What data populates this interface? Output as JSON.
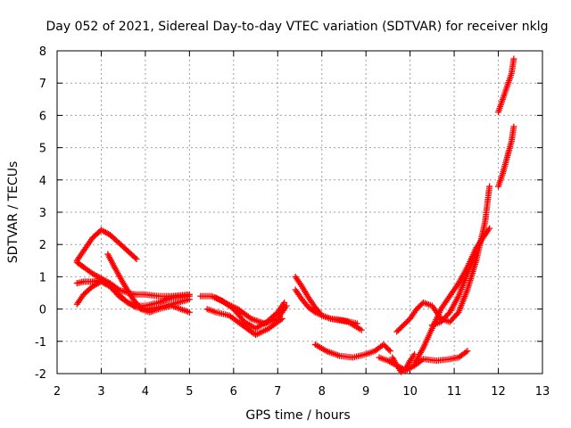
{
  "chart_data": {
    "type": "scatter",
    "title": "Day 052 of 2021, Sidereal Day-to-day VTEC variation (SDTVAR) for receiver nklg",
    "xlabel": "GPS time / hours",
    "ylabel": "SDTVAR / TECUs",
    "xlim": [
      2,
      13
    ],
    "ylim": [
      -2,
      8
    ],
    "xticks": [
      2,
      3,
      4,
      5,
      6,
      7,
      8,
      9,
      10,
      11,
      12,
      13
    ],
    "yticks": [
      -2,
      -1,
      0,
      1,
      2,
      3,
      4,
      5,
      6,
      7,
      8
    ],
    "grid": true,
    "marker": "+",
    "color": "#ff0000",
    "series": [
      {
        "x": [
          2.45,
          2.6,
          2.8,
          3.0,
          3.2,
          3.4,
          3.6,
          3.8
        ],
        "y": [
          1.5,
          1.8,
          2.2,
          2.45,
          2.3,
          2.05,
          1.8,
          1.55
        ]
      },
      {
        "x": [
          2.45,
          2.6,
          2.8,
          3.0,
          3.2,
          3.4,
          3.6,
          3.8,
          4.0,
          4.3,
          4.6,
          5.0
        ],
        "y": [
          1.45,
          1.3,
          1.1,
          0.95,
          0.8,
          0.6,
          0.5,
          0.45,
          0.45,
          0.4,
          0.4,
          0.45
        ]
      },
      {
        "x": [
          2.45,
          2.6,
          2.8,
          3.0,
          3.2,
          3.4,
          3.6,
          3.8,
          4.0,
          4.3,
          4.6,
          5.0
        ],
        "y": [
          0.8,
          0.85,
          0.85,
          0.9,
          0.75,
          0.45,
          0.2,
          0.05,
          0.0,
          0.05,
          0.15,
          0.3
        ]
      },
      {
        "x": [
          2.45,
          2.6,
          2.8,
          3.0,
          3.2,
          3.4,
          3.6,
          3.8,
          4.0,
          4.3,
          4.6,
          5.0
        ],
        "y": [
          0.15,
          0.45,
          0.7,
          0.85,
          0.7,
          0.4,
          0.2,
          0.1,
          0.1,
          0.2,
          0.35,
          0.4
        ]
      },
      {
        "x": [
          3.15,
          3.3,
          3.5,
          3.7,
          3.9,
          4.1,
          4.3,
          4.6,
          5.0
        ],
        "y": [
          1.7,
          1.3,
          0.8,
          0.35,
          0.0,
          -0.1,
          0.0,
          0.1,
          -0.1
        ]
      },
      {
        "x": [
          5.25,
          5.5,
          5.75,
          6.0,
          6.25,
          6.5,
          6.75,
          7.0,
          7.15
        ],
        "y": [
          0.4,
          0.4,
          0.25,
          0.0,
          -0.4,
          -0.6,
          -0.4,
          -0.1,
          0.2
        ]
      },
      {
        "x": [
          5.4,
          5.6,
          5.9,
          6.2,
          6.5,
          6.8,
          7.1
        ],
        "y": [
          0.0,
          -0.1,
          -0.2,
          -0.5,
          -0.8,
          -0.6,
          -0.3
        ]
      },
      {
        "x": [
          5.6,
          5.8,
          6.1,
          6.4,
          6.7,
          7.0,
          7.2
        ],
        "y": [
          0.35,
          0.2,
          0.0,
          -0.3,
          -0.45,
          -0.3,
          0.1
        ]
      },
      {
        "x": [
          7.4,
          7.55,
          7.7,
          7.85,
          8.0,
          8.2,
          8.4,
          8.6,
          8.9
        ],
        "y": [
          1.0,
          0.7,
          0.35,
          0.05,
          -0.2,
          -0.3,
          -0.35,
          -0.4,
          -0.65
        ]
      },
      {
        "x": [
          7.4,
          7.55,
          7.7,
          7.85,
          8.0,
          8.2,
          8.5,
          8.8
        ],
        "y": [
          0.6,
          0.3,
          0.05,
          -0.1,
          -0.2,
          -0.3,
          -0.35,
          -0.45
        ]
      },
      {
        "x": [
          7.85,
          8.1,
          8.4,
          8.7,
          9.0,
          9.2,
          9.4,
          9.55
        ],
        "y": [
          -1.1,
          -1.3,
          -1.45,
          -1.5,
          -1.4,
          -1.3,
          -1.1,
          -1.3
        ]
      },
      {
        "x": [
          9.3,
          9.5,
          9.7,
          9.9,
          10.1,
          10.3,
          10.6,
          10.9,
          11.1,
          11.3
        ],
        "y": [
          -1.5,
          -1.6,
          -1.75,
          -1.9,
          -1.75,
          -1.55,
          -1.6,
          -1.55,
          -1.5,
          -1.3
        ]
      },
      {
        "x": [
          9.6,
          9.7,
          9.8,
          9.9,
          10.0,
          10.1
        ],
        "y": [
          -1.5,
          -1.75,
          -1.95,
          -1.85,
          -1.6,
          -1.4
        ]
      },
      {
        "x": [
          9.7,
          9.85,
          10.0,
          10.15,
          10.3,
          10.5,
          10.7,
          10.9,
          11.1,
          11.3,
          11.5,
          11.7,
          11.8
        ],
        "y": [
          -0.7,
          -0.5,
          -0.3,
          0.0,
          0.2,
          0.1,
          -0.3,
          -0.4,
          -0.1,
          0.6,
          1.5,
          2.7,
          3.8
        ]
      },
      {
        "x": [
          10.1,
          10.3,
          10.5,
          10.7,
          10.9,
          11.1,
          11.3,
          11.5,
          11.7,
          11.8
        ],
        "y": [
          -1.7,
          -1.2,
          -0.6,
          0.0,
          0.4,
          0.8,
          1.3,
          1.9,
          2.3,
          2.5
        ]
      },
      {
        "x": [
          10.5,
          10.7,
          10.9,
          11.1,
          11.3,
          11.5
        ],
        "y": [
          -0.5,
          -0.4,
          -0.1,
          0.4,
          1.1,
          1.8
        ]
      },
      {
        "x": [
          12.0,
          12.1,
          12.2,
          12.3,
          12.35
        ],
        "y": [
          6.1,
          6.5,
          6.9,
          7.3,
          7.75
        ]
      },
      {
        "x": [
          12.0,
          12.1,
          12.2,
          12.3,
          12.35
        ],
        "y": [
          3.8,
          4.2,
          4.7,
          5.2,
          5.65
        ]
      }
    ]
  }
}
